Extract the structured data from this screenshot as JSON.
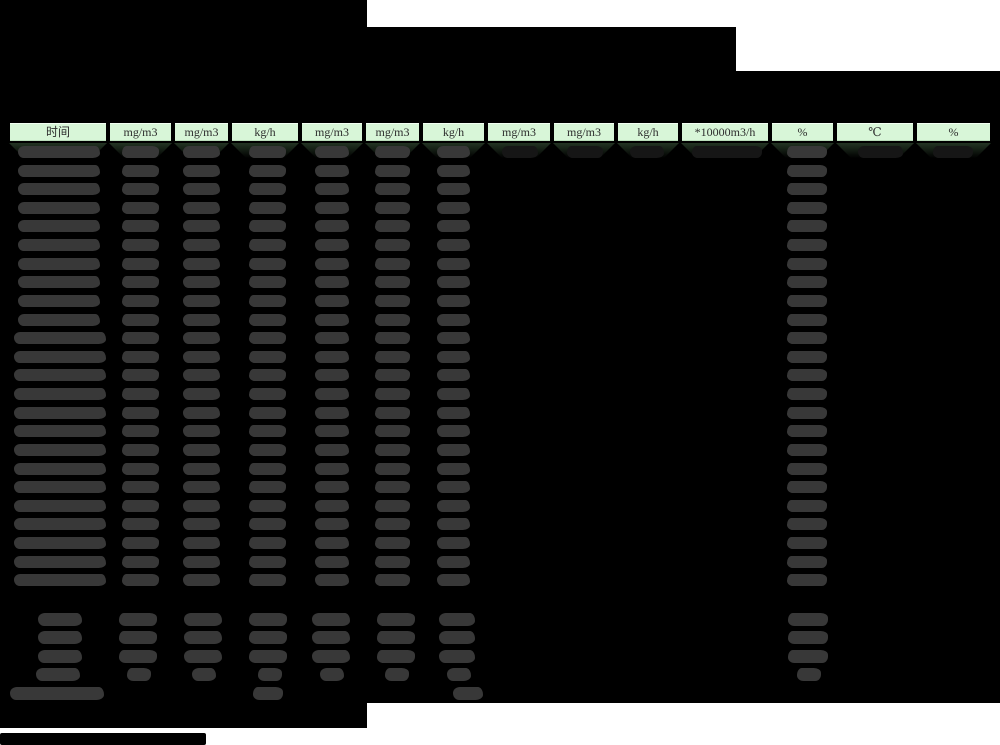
{
  "document": {
    "kind": "redacted-spreadsheet-report",
    "background_color": "#ffffff",
    "redaction_color": "#000000",
    "redaction_scribble_color": "#383838",
    "redaction_scribble_dark_color": "#161616"
  },
  "table": {
    "header": {
      "bg_color": "#d8f6d8",
      "border_color": "#000000",
      "text_color": "#2d2d2d",
      "shadow_color": "#233423",
      "columns": [
        {
          "label": "时间"
        },
        {
          "label": "mg/m3"
        },
        {
          "label": "mg/m3"
        },
        {
          "label": "kg/h"
        },
        {
          "label": "mg/m3"
        },
        {
          "label": "mg/m3"
        },
        {
          "label": "kg/h"
        },
        {
          "label": "mg/m3"
        },
        {
          "label": "mg/m3"
        },
        {
          "label": "kg/h"
        },
        {
          "label": "*10000m3/h"
        },
        {
          "label": "%"
        },
        {
          "label": "℃"
        },
        {
          "label": "%"
        }
      ]
    },
    "body": {
      "redacted_data_row_count": 24,
      "redacted_summary_row_count": 4,
      "redacted_limit_row_count": 1,
      "note_visible_text": ""
    }
  }
}
